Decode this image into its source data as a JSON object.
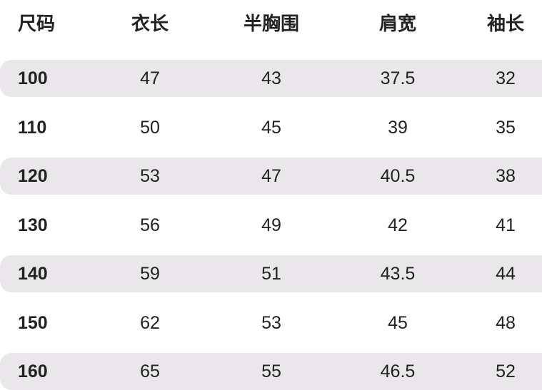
{
  "headers": [
    "尺码",
    "衣长",
    "半胸围",
    "肩宽",
    "袖长"
  ],
  "rows": [
    [
      "100",
      "47",
      "43",
      "37.5",
      "32"
    ],
    [
      "110",
      "50",
      "45",
      "39",
      "35"
    ],
    [
      "120",
      "53",
      "47",
      "40.5",
      "38"
    ],
    [
      "130",
      "56",
      "49",
      "42",
      "41"
    ],
    [
      "140",
      "59",
      "51",
      "43.5",
      "44"
    ],
    [
      "150",
      "62",
      "53",
      "45",
      "48"
    ],
    [
      "160",
      "65",
      "55",
      "46.5",
      "52"
    ]
  ],
  "colors": {
    "stripe": "#e9e7e9",
    "text": "#222222"
  }
}
